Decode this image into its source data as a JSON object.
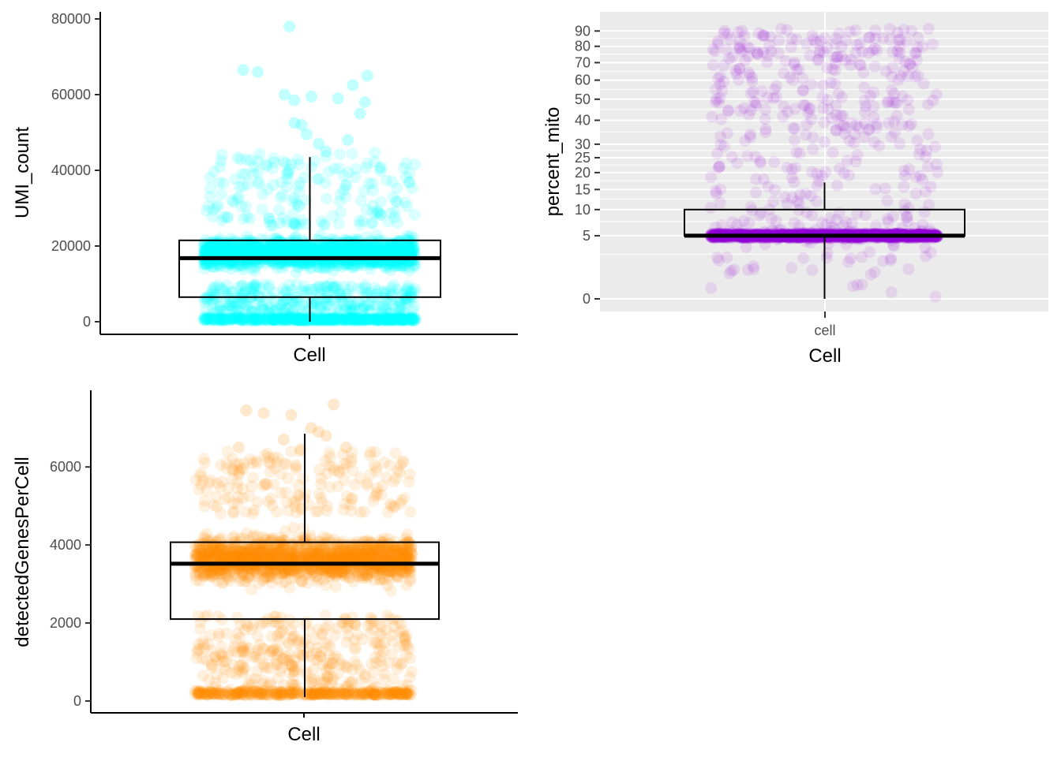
{
  "chart_data": [
    {
      "type": "box",
      "id": "umi",
      "xlabel": "Cell",
      "ylabel": "UMI_count",
      "ylim": [
        0,
        80000
      ],
      "yticks": [
        0,
        20000,
        40000,
        60000,
        80000
      ],
      "ytick_labels": [
        "0",
        "20000",
        "40000",
        "60000",
        "80000"
      ],
      "point_color": "#00FFFF",
      "point_alpha": 0.15,
      "grid": false,
      "box": {
        "q1": 6500,
        "median": 16800,
        "q3": 21500,
        "whisker_low": 0,
        "whisker_high": 43500
      },
      "highlight_points": [
        {
          "x": 0.26,
          "y": 66500
        },
        {
          "x": 0.32,
          "y": 66000
        },
        {
          "x": 0.45,
          "y": 78000
        },
        {
          "x": 0.43,
          "y": 60000
        },
        {
          "x": 0.47,
          "y": 58500
        },
        {
          "x": 0.54,
          "y": 59500
        },
        {
          "x": 0.65,
          "y": 59000
        },
        {
          "x": 0.71,
          "y": 62500
        },
        {
          "x": 0.77,
          "y": 65000
        },
        {
          "x": 0.76,
          "y": 58000
        },
        {
          "x": 0.47,
          "y": 52500
        },
        {
          "x": 0.5,
          "y": 52000
        },
        {
          "x": 0.52,
          "y": 49500
        },
        {
          "x": 0.74,
          "y": 55000
        },
        {
          "x": 0.57,
          "y": 47000
        },
        {
          "x": 0.69,
          "y": 48000
        },
        {
          "x": 0.6,
          "y": 45000
        }
      ]
    },
    {
      "type": "box",
      "id": "mito",
      "xlabel": "Cell",
      "ylabel": "percent_mito",
      "categories": [
        "cell"
      ],
      "ylim": [
        0,
        95
      ],
      "yticks": [
        0,
        5,
        10,
        15,
        20,
        25,
        30,
        40,
        50,
        60,
        70,
        80,
        90
      ],
      "ytick_labels": [
        "0",
        "5",
        "10",
        "15",
        "20",
        "25",
        "30",
        "40",
        "50",
        "60",
        "70",
        "80",
        "90"
      ],
      "point_color": "#9400D3",
      "point_alpha": 0.1,
      "grid": true,
      "panel_background": "#EBEBEB",
      "box": {
        "q1": 5,
        "median": 5,
        "q3": 10,
        "whisker_low": 0,
        "whisker_high": 17
      }
    },
    {
      "type": "box",
      "id": "genes",
      "xlabel": "Cell",
      "ylabel": "detectedGenesPerCell",
      "ylim": [
        0,
        7600
      ],
      "yticks": [
        0,
        2000,
        4000,
        6000
      ],
      "ytick_labels": [
        "0",
        "2000",
        "4000",
        "6000"
      ],
      "point_color": "#FF8C00",
      "point_alpha": 0.12,
      "grid": false,
      "box": {
        "q1": 2100,
        "median": 3520,
        "q3": 4070,
        "whisker_low": 100,
        "whisker_high": 6850
      },
      "highlight_points": [
        {
          "x": 0.3,
          "y": 7450
        },
        {
          "x": 0.37,
          "y": 7380
        },
        {
          "x": 0.48,
          "y": 7330
        },
        {
          "x": 0.65,
          "y": 7600
        },
        {
          "x": 0.56,
          "y": 7000
        },
        {
          "x": 0.59,
          "y": 6900
        },
        {
          "x": 0.62,
          "y": 6800
        },
        {
          "x": 0.45,
          "y": 6700
        },
        {
          "x": 0.52,
          "y": 6450
        },
        {
          "x": 0.7,
          "y": 6500
        },
        {
          "x": 0.27,
          "y": 6500
        }
      ]
    }
  ]
}
